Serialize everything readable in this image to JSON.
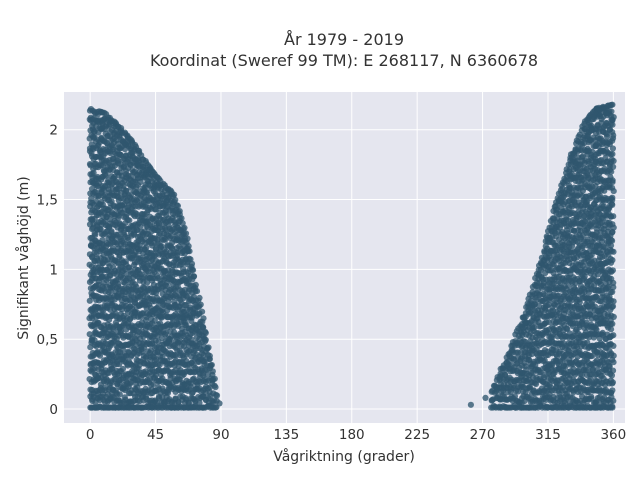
{
  "chart_data": {
    "type": "scatter",
    "title_line1": "År 1979 - 2019",
    "title_line2": "Koordinat (Sweref 99 TM): E 268117, N 6360678",
    "xlabel": "Vågriktning (grader)",
    "ylabel": "Signifikant våghöjd (m)",
    "xlim": [
      -18,
      368
    ],
    "ylim": [
      -0.1,
      2.27
    ],
    "xticks": [
      0,
      45,
      90,
      135,
      180,
      225,
      270,
      315,
      360
    ],
    "xtick_labels": [
      "0",
      "45",
      "90",
      "135",
      "180",
      "225",
      "270",
      "315",
      "360"
    ],
    "yticks": [
      0,
      0.5,
      1,
      1.5,
      2
    ],
    "ytick_labels": [
      "0",
      "0,5",
      "1",
      "1,5",
      "2"
    ],
    "grid": true,
    "color": "#2f566e",
    "upper_envelope_low_band": [
      [
        0,
        2.15
      ],
      [
        10,
        2.12
      ],
      [
        20,
        2.02
      ],
      [
        30,
        1.9
      ],
      [
        40,
        1.74
      ],
      [
        50,
        1.62
      ],
      [
        58,
        1.53
      ],
      [
        65,
        1.3
      ],
      [
        72,
        0.95
      ],
      [
        80,
        0.5
      ],
      [
        85,
        0.25
      ],
      [
        88,
        0.05
      ]
    ],
    "upper_envelope_high_band": [
      [
        262,
        0.03
      ],
      [
        275,
        0.1
      ],
      [
        290,
        0.45
      ],
      [
        300,
        0.72
      ],
      [
        310,
        1.05
      ],
      [
        320,
        1.45
      ],
      [
        330,
        1.78
      ],
      [
        340,
        2.05
      ],
      [
        348,
        2.15
      ],
      [
        360,
        2.18
      ]
    ],
    "outlier_points": [
      [
        262,
        0.03
      ],
      [
        89,
        0.04
      ],
      [
        282,
        0.07
      ],
      [
        272,
        0.08
      ],
      [
        67,
        1.15
      ],
      [
        78,
        0.65
      ]
    ]
  }
}
